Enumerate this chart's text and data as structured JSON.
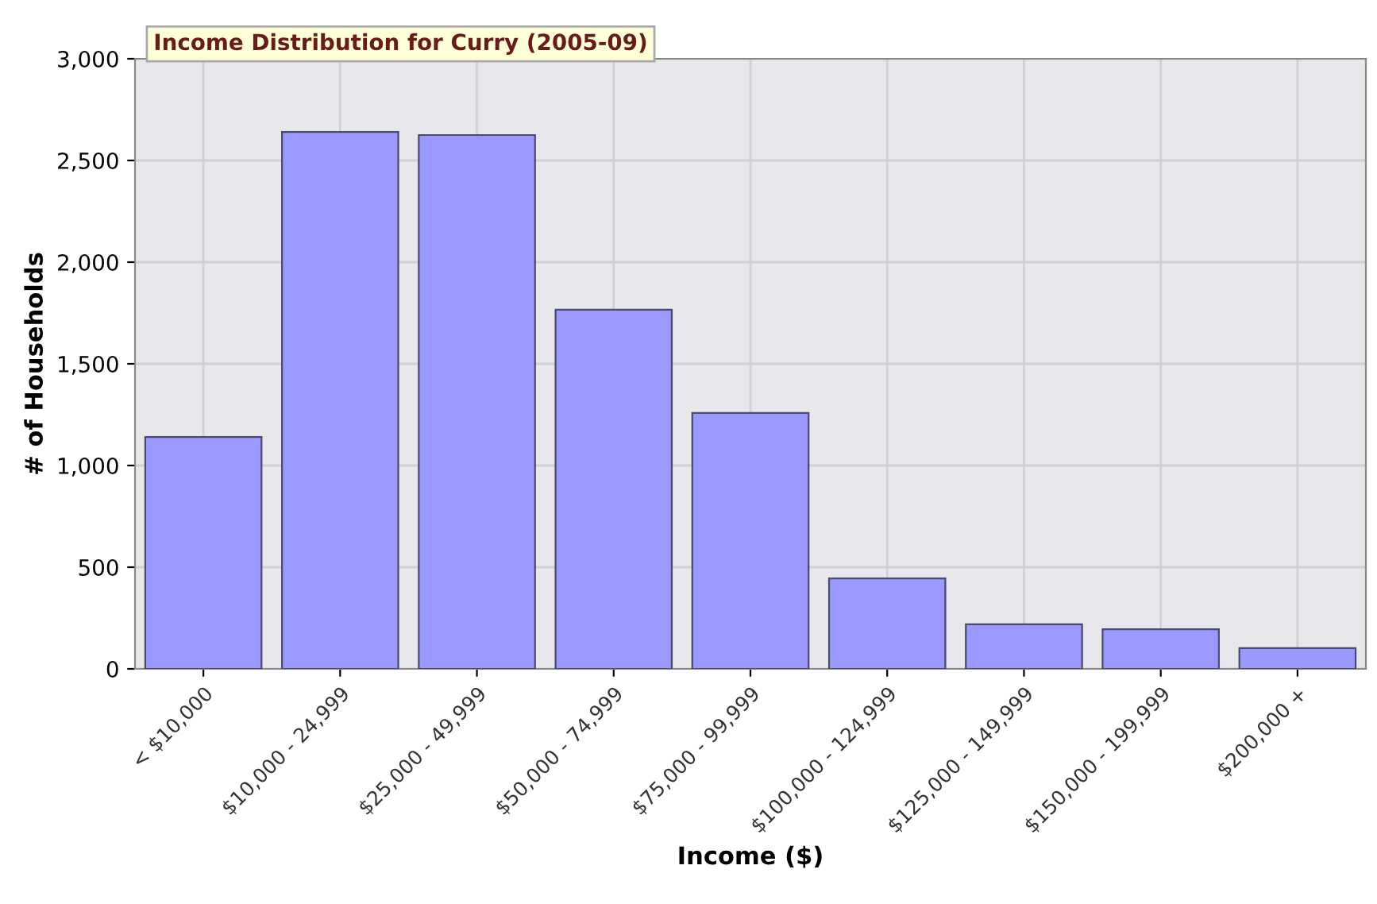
{
  "chart_data": {
    "type": "bar",
    "title": "Income Distribution for Curry (2005-09)",
    "xlabel": "Income ($)",
    "ylabel": "# of Households",
    "categories": [
      "< $10,000",
      "$10,000 - 24,999",
      "$25,000 - 49,999",
      "$50,000 - 74,999",
      "$75,000 - 99,999",
      "$100,000 - 124,999",
      "$125,000 - 149,999",
      "$150,000 - 199,999",
      "$200,000 +"
    ],
    "values": [
      1140,
      2640,
      2625,
      1766,
      1258,
      445,
      219,
      195,
      102
    ],
    "color": "#9999ff",
    "ylim": [
      0,
      3000
    ],
    "yticks": [
      {
        "value": 0,
        "label": "0"
      },
      {
        "value": 500,
        "label": "500"
      },
      {
        "value": 1000,
        "label": "1,000"
      },
      {
        "value": 1500,
        "label": "1,500"
      },
      {
        "value": 2000,
        "label": "2,000"
      },
      {
        "value": 2500,
        "label": "2,500"
      },
      {
        "value": 3000,
        "label": "3,000"
      }
    ],
    "grid": true
  }
}
